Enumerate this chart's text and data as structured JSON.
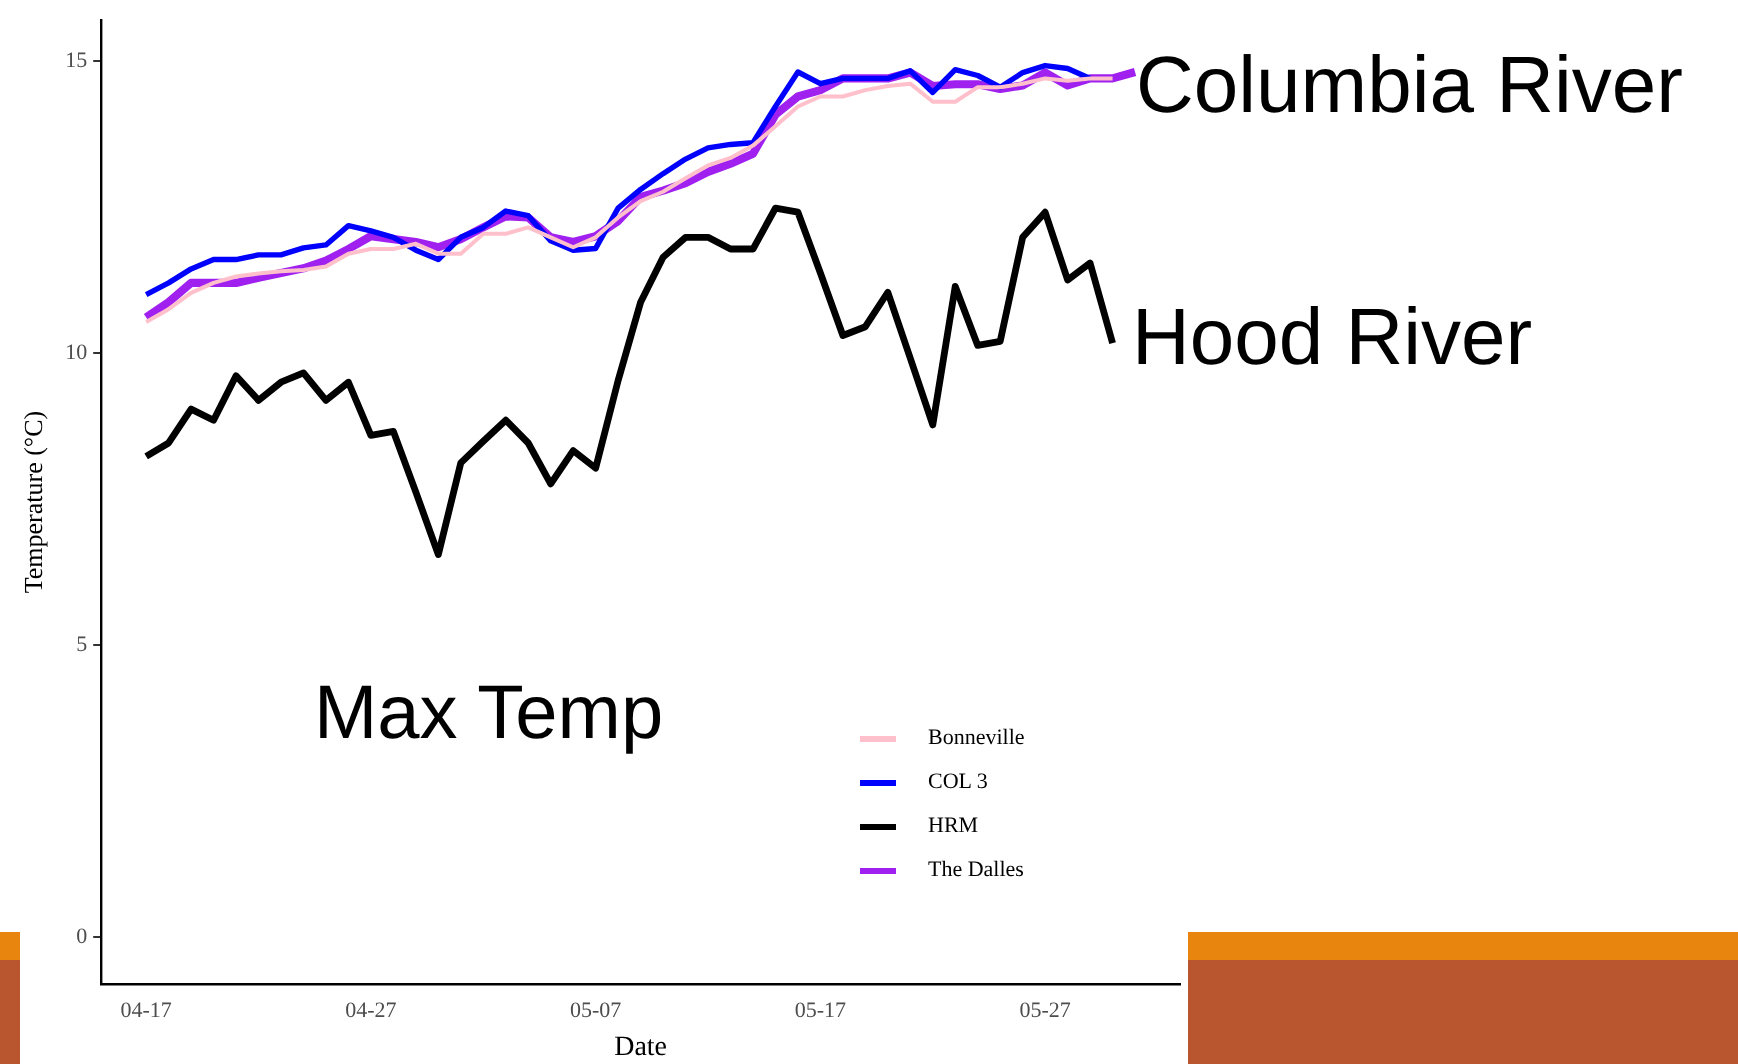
{
  "chart_data": {
    "type": "line",
    "xlabel": "Date",
    "ylabel": "Temperature (°C)",
    "annotations": [
      "Columbia River",
      "Hood River",
      "Max Temp"
    ],
    "x": [
      "--04-17",
      "--04-18",
      "--04-19",
      "--04-20",
      "--04-21",
      "--04-22",
      "--04-23",
      "--04-24",
      "--04-25",
      "--04-26",
      "--04-27",
      "--04-28",
      "--04-29",
      "--04-30",
      "--05-01",
      "--05-02",
      "--05-03",
      "--05-04",
      "--05-05",
      "--05-06",
      "--05-07",
      "--05-08",
      "--05-09",
      "--05-10",
      "--05-11",
      "--05-12",
      "--05-13",
      "--05-14",
      "--05-15",
      "--05-16",
      "--05-17",
      "--05-18",
      "--05-19",
      "--05-20",
      "--05-21",
      "--05-22",
      "--05-23",
      "--05-24",
      "--05-25",
      "--05-26",
      "--05-27",
      "--05-28",
      "--05-29",
      "--05-30",
      "--05-31"
    ],
    "xlim": [
      "--04-15",
      "--06-02"
    ],
    "xticks": [
      {
        "value": "--04-17",
        "label": "04-17"
      },
      {
        "value": "--04-27",
        "label": "04-27"
      },
      {
        "value": "--05-07",
        "label": "05-07"
      },
      {
        "value": "--05-17",
        "label": "05-17"
      },
      {
        "value": "--05-27",
        "label": "05-27"
      }
    ],
    "ylim": [
      -0.8,
      15.7
    ],
    "yticks": [
      0,
      5,
      10,
      15
    ],
    "legend": "bottom right",
    "series": [
      {
        "name": "Bonneville",
        "color": "#ffc0cb",
        "values": [
          10.53,
          10.75,
          11.03,
          11.2,
          11.31,
          11.36,
          11.4,
          11.42,
          11.48,
          11.7,
          11.78,
          11.78,
          11.87,
          11.7,
          11.7,
          12.04,
          12.04,
          12.15,
          11.98,
          11.81,
          11.98,
          12.32,
          12.6,
          12.76,
          12.99,
          13.21,
          13.34,
          13.55,
          13.88,
          14.22,
          14.39,
          14.39,
          14.5,
          14.57,
          14.61,
          14.3,
          14.3,
          14.55,
          14.55,
          14.61,
          14.7,
          14.66,
          14.7,
          14.7,
          null
        ]
      },
      {
        "name": "COL 3",
        "color": "#0000ff",
        "values": [
          11.0,
          11.2,
          11.44,
          11.6,
          11.6,
          11.68,
          11.68,
          11.8,
          11.85,
          12.18,
          12.09,
          11.98,
          11.76,
          11.6,
          11.98,
          12.15,
          12.43,
          12.35,
          11.92,
          11.76,
          11.79,
          12.48,
          12.8,
          13.07,
          13.32,
          13.51,
          13.57,
          13.6,
          14.22,
          14.81,
          14.61,
          14.7,
          14.7,
          14.7,
          14.83,
          14.46,
          14.85,
          14.75,
          14.55,
          14.8,
          14.92,
          14.87,
          14.7,
          null,
          null
        ]
      },
      {
        "name": "HRM",
        "color": "#000000",
        "values": [
          8.23,
          8.46,
          9.04,
          8.85,
          9.61,
          9.19,
          9.5,
          9.66,
          9.19,
          9.5,
          8.59,
          8.66,
          7.62,
          6.55,
          8.12,
          8.49,
          8.85,
          8.46,
          7.76,
          8.33,
          8.03,
          9.53,
          10.87,
          11.64,
          11.98,
          11.98,
          11.78,
          11.78,
          12.48,
          12.41,
          11.37,
          10.3,
          10.45,
          11.04,
          9.91,
          8.77,
          11.14,
          10.13,
          10.2,
          11.98,
          12.41,
          11.25,
          11.54,
          10.17,
          null
        ]
      },
      {
        "name": "The Dalles",
        "color": "#a020f0",
        "values": [
          10.61,
          10.87,
          11.2,
          11.2,
          11.2,
          11.29,
          11.37,
          11.45,
          11.58,
          11.78,
          12.0,
          11.95,
          11.9,
          11.81,
          11.95,
          12.15,
          12.34,
          12.32,
          11.98,
          11.9,
          12.0,
          12.26,
          12.67,
          12.78,
          12.91,
          13.1,
          13.24,
          13.41,
          14.08,
          14.39,
          14.5,
          14.7,
          14.7,
          14.7,
          14.8,
          14.57,
          14.6,
          14.6,
          14.52,
          14.58,
          14.8,
          14.58,
          14.7,
          14.7,
          14.81
        ]
      }
    ]
  }
}
